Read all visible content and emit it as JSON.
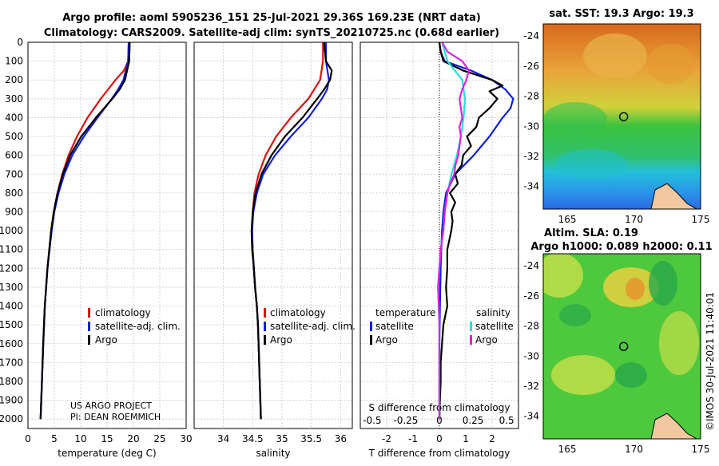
{
  "titles": {
    "line1": "Argo profile: aoml 5905236_151 25-Jul-2021 29.36S 169.23E (NRT data)",
    "line2": "Climatology: CARS2009. Satellite-adj clim: synTS_20210725.nc (0.68d earlier)",
    "sst": "sat. SST: 19.3 Argo: 19.3",
    "sla": "Altim. SLA: 0.19",
    "argo_h": "Argo h1000: 0.089 h2000: 0.11"
  },
  "side_label": "©IMOS 30-Jul-2021 11:40:01",
  "project": {
    "line1": "US ARGO PROJECT",
    "line2": "PI: DEAN ROEMMICH"
  },
  "colors": {
    "climatology": "#e01010",
    "satellite": "#1020e0",
    "argo": "#000000",
    "sal_satellite": "#20e0e0",
    "sal_argo": "#e020e0",
    "grid": "#c8c8c8"
  },
  "legend1": {
    "climatology": "climatology",
    "satellite": "satellite-adj. clim.",
    "argo": "Argo"
  },
  "legend3": {
    "temperature": "temperature",
    "salinity": "salinity",
    "t_sat": "satellite",
    "t_argo": "Argo",
    "s_sat": "satellite",
    "s_argo": "Argo"
  },
  "chart_data": [
    {
      "type": "line",
      "title": "",
      "xlabel": "temperature (deg C)",
      "ylabel": "",
      "xlim": [
        0,
        30
      ],
      "ylim": [
        2050,
        0
      ],
      "xticks": [
        0,
        5,
        10,
        15,
        20,
        25,
        30
      ],
      "yticks": [
        0,
        100,
        200,
        300,
        400,
        500,
        600,
        700,
        800,
        900,
        1000,
        1100,
        1200,
        1300,
        1400,
        1500,
        1600,
        1700,
        1800,
        1900,
        2000
      ],
      "series": [
        {
          "name": "climatology",
          "depth": [
            0,
            100,
            150,
            200,
            300,
            400,
            500,
            600,
            700,
            800,
            900,
            1000,
            1200,
            1400,
            1600,
            1800,
            2000
          ],
          "values": [
            19.1,
            19.0,
            18.2,
            16.6,
            13.8,
            11.3,
            9.3,
            7.7,
            6.5,
            5.6,
            4.9,
            4.4,
            3.7,
            3.2,
            2.9,
            2.65,
            2.4
          ]
        },
        {
          "name": "satellite-adj. clim.",
          "depth": [
            0,
            100,
            200,
            250,
            300,
            400,
            500,
            600,
            700,
            800,
            900,
            1000,
            1200,
            1400,
            1600,
            1800,
            2000
          ],
          "values": [
            19.1,
            19.0,
            18.1,
            17.1,
            15.9,
            13.2,
            10.6,
            8.4,
            6.9,
            5.8,
            5.0,
            4.5,
            3.7,
            3.2,
            2.9,
            2.65,
            2.4
          ]
        },
        {
          "name": "Argo",
          "depth": [
            0,
            100,
            200,
            250,
            300,
            400,
            500,
            600,
            700,
            800,
            900,
            1000,
            1200,
            1400,
            1600,
            1800,
            2000
          ],
          "values": [
            19.3,
            19.2,
            18.4,
            17.4,
            16.0,
            12.9,
            10.1,
            8.0,
            6.6,
            5.6,
            4.9,
            4.4,
            3.7,
            3.2,
            2.9,
            2.65,
            2.4
          ]
        }
      ]
    },
    {
      "type": "line",
      "xlabel": "salinity",
      "xlim": [
        33.5,
        36.2
      ],
      "ylim": [
        2050,
        0
      ],
      "xticks": [
        34,
        34.5,
        35,
        35.5,
        36
      ],
      "series": [
        {
          "name": "climatology",
          "depth": [
            0,
            50,
            100,
            200,
            300,
            400,
            500,
            600,
            700,
            800,
            900,
            1000,
            1100,
            1200,
            1300,
            1400,
            1500,
            1600,
            1800,
            2000
          ],
          "values": [
            35.7,
            35.7,
            35.7,
            35.65,
            35.45,
            35.15,
            34.9,
            34.72,
            34.6,
            34.53,
            34.5,
            34.49,
            34.5,
            34.52,
            34.54,
            34.57,
            34.59,
            34.6,
            34.62,
            34.64
          ]
        },
        {
          "name": "satellite-adj. clim.",
          "depth": [
            0,
            100,
            200,
            250,
            300,
            400,
            500,
            600,
            700,
            800,
            900,
            1000,
            1100,
            1200,
            1300,
            1400,
            1500,
            1600,
            1800,
            2000
          ],
          "values": [
            35.75,
            35.75,
            35.8,
            35.77,
            35.68,
            35.45,
            35.15,
            34.88,
            34.68,
            34.57,
            34.51,
            34.49,
            34.5,
            34.52,
            34.54,
            34.57,
            34.59,
            34.6,
            34.62,
            34.64
          ]
        },
        {
          "name": "Argo",
          "depth": [
            0,
            100,
            150,
            200,
            250,
            300,
            400,
            500,
            600,
            700,
            800,
            900,
            1000,
            1100,
            1200,
            1300,
            1400,
            1500,
            1600,
            1800,
            2000
          ],
          "values": [
            35.72,
            35.75,
            35.85,
            35.82,
            35.72,
            35.6,
            35.35,
            35.05,
            34.82,
            34.65,
            34.55,
            34.5,
            34.48,
            34.49,
            34.52,
            34.54,
            34.57,
            34.59,
            34.6,
            34.62,
            34.64
          ]
        }
      ]
    },
    {
      "type": "line",
      "xlabel": "T difference from climatology",
      "xlabel_top": "S difference from climatology",
      "xlim": [
        -3,
        3
      ],
      "ylim": [
        2050,
        0
      ],
      "xticks": [
        -2,
        -1,
        0,
        1,
        2
      ],
      "xticks_s": [
        -0.5,
        -0.25,
        0,
        0.25,
        0.5
      ],
      "series": [
        {
          "name": "temperature satellite",
          "depth": [
            0,
            50,
            100,
            150,
            200,
            250,
            300,
            350,
            400,
            500,
            600,
            700,
            800,
            900,
            1000,
            1200,
            1400,
            1600,
            1800,
            2000
          ],
          "values": [
            0.0,
            0.05,
            0.2,
            1.2,
            2.0,
            2.5,
            2.8,
            2.7,
            2.4,
            1.9,
            1.3,
            0.6,
            0.25,
            0.15,
            0.1,
            0.05,
            0.02,
            0.0,
            0.0,
            0.0
          ]
        },
        {
          "name": "temperature Argo",
          "depth": [
            0,
            50,
            100,
            150,
            200,
            230,
            260,
            300,
            350,
            400,
            450,
            500,
            550,
            600,
            650,
            700,
            750,
            800,
            850,
            900,
            950,
            1000,
            1100,
            1200,
            1300,
            1400,
            1500,
            1600,
            1700,
            1800,
            1900,
            2000
          ],
          "values": [
            0.0,
            0.05,
            0.15,
            0.9,
            2.0,
            2.4,
            1.9,
            2.2,
            1.9,
            1.5,
            1.4,
            1.05,
            1.2,
            0.9,
            0.85,
            0.6,
            0.7,
            0.4,
            0.6,
            0.45,
            0.5,
            0.45,
            0.3,
            0.3,
            0.25,
            0.3,
            0.15,
            0.1,
            0.05,
            0.05,
            0.02,
            0.0
          ]
        },
        {
          "name": "salinity satellite",
          "depth": [
            0,
            100,
            200,
            300,
            400,
            500,
            600,
            700,
            800,
            900,
            1000,
            1100,
            1200,
            1300,
            1400,
            1500,
            1600,
            1800,
            2000
          ],
          "values": [
            0.02,
            0.06,
            0.17,
            0.19,
            0.18,
            0.16,
            0.13,
            0.09,
            0.06,
            0.04,
            0.03,
            0.01,
            0.0,
            -0.01,
            -0.005,
            0.0,
            0.0,
            0.0,
            0.0
          ]
        },
        {
          "name": "salinity Argo",
          "depth": [
            0,
            50,
            100,
            150,
            200,
            250,
            300,
            350,
            400,
            450,
            500,
            550,
            600,
            650,
            700,
            750,
            800,
            900,
            1000,
            1100,
            1200,
            1300,
            1400,
            1500,
            1600,
            1800,
            2000
          ],
          "values": [
            0.02,
            0.06,
            0.17,
            0.22,
            0.2,
            0.17,
            0.15,
            0.16,
            0.17,
            0.15,
            0.16,
            0.15,
            0.14,
            0.12,
            0.11,
            0.08,
            0.06,
            0.04,
            0.03,
            0.01,
            0.0,
            -0.01,
            -0.005,
            0.0,
            0.0,
            0.0,
            0.0
          ]
        }
      ]
    },
    {
      "type": "heatmap",
      "title": "sat. SST: 19.3 Argo: 19.3",
      "xlim": [
        163.2,
        175
      ],
      "ylim": [
        -35.5,
        -23.2
      ],
      "xticks": [
        165,
        170,
        175
      ],
      "yticks": [
        -24,
        -26,
        -28,
        -30,
        -32,
        -34
      ],
      "float_location": {
        "lon": 169.23,
        "lat": -29.36
      }
    },
    {
      "type": "heatmap",
      "title": "Altim. SLA: 0.19",
      "xlim": [
        163.2,
        175
      ],
      "ylim": [
        -35.5,
        -23.2
      ],
      "xticks": [
        165,
        170,
        175
      ],
      "yticks": [
        -24,
        -26,
        -28,
        -30,
        -32,
        -34
      ],
      "float_location": {
        "lon": 169.23,
        "lat": -29.36
      }
    }
  ]
}
